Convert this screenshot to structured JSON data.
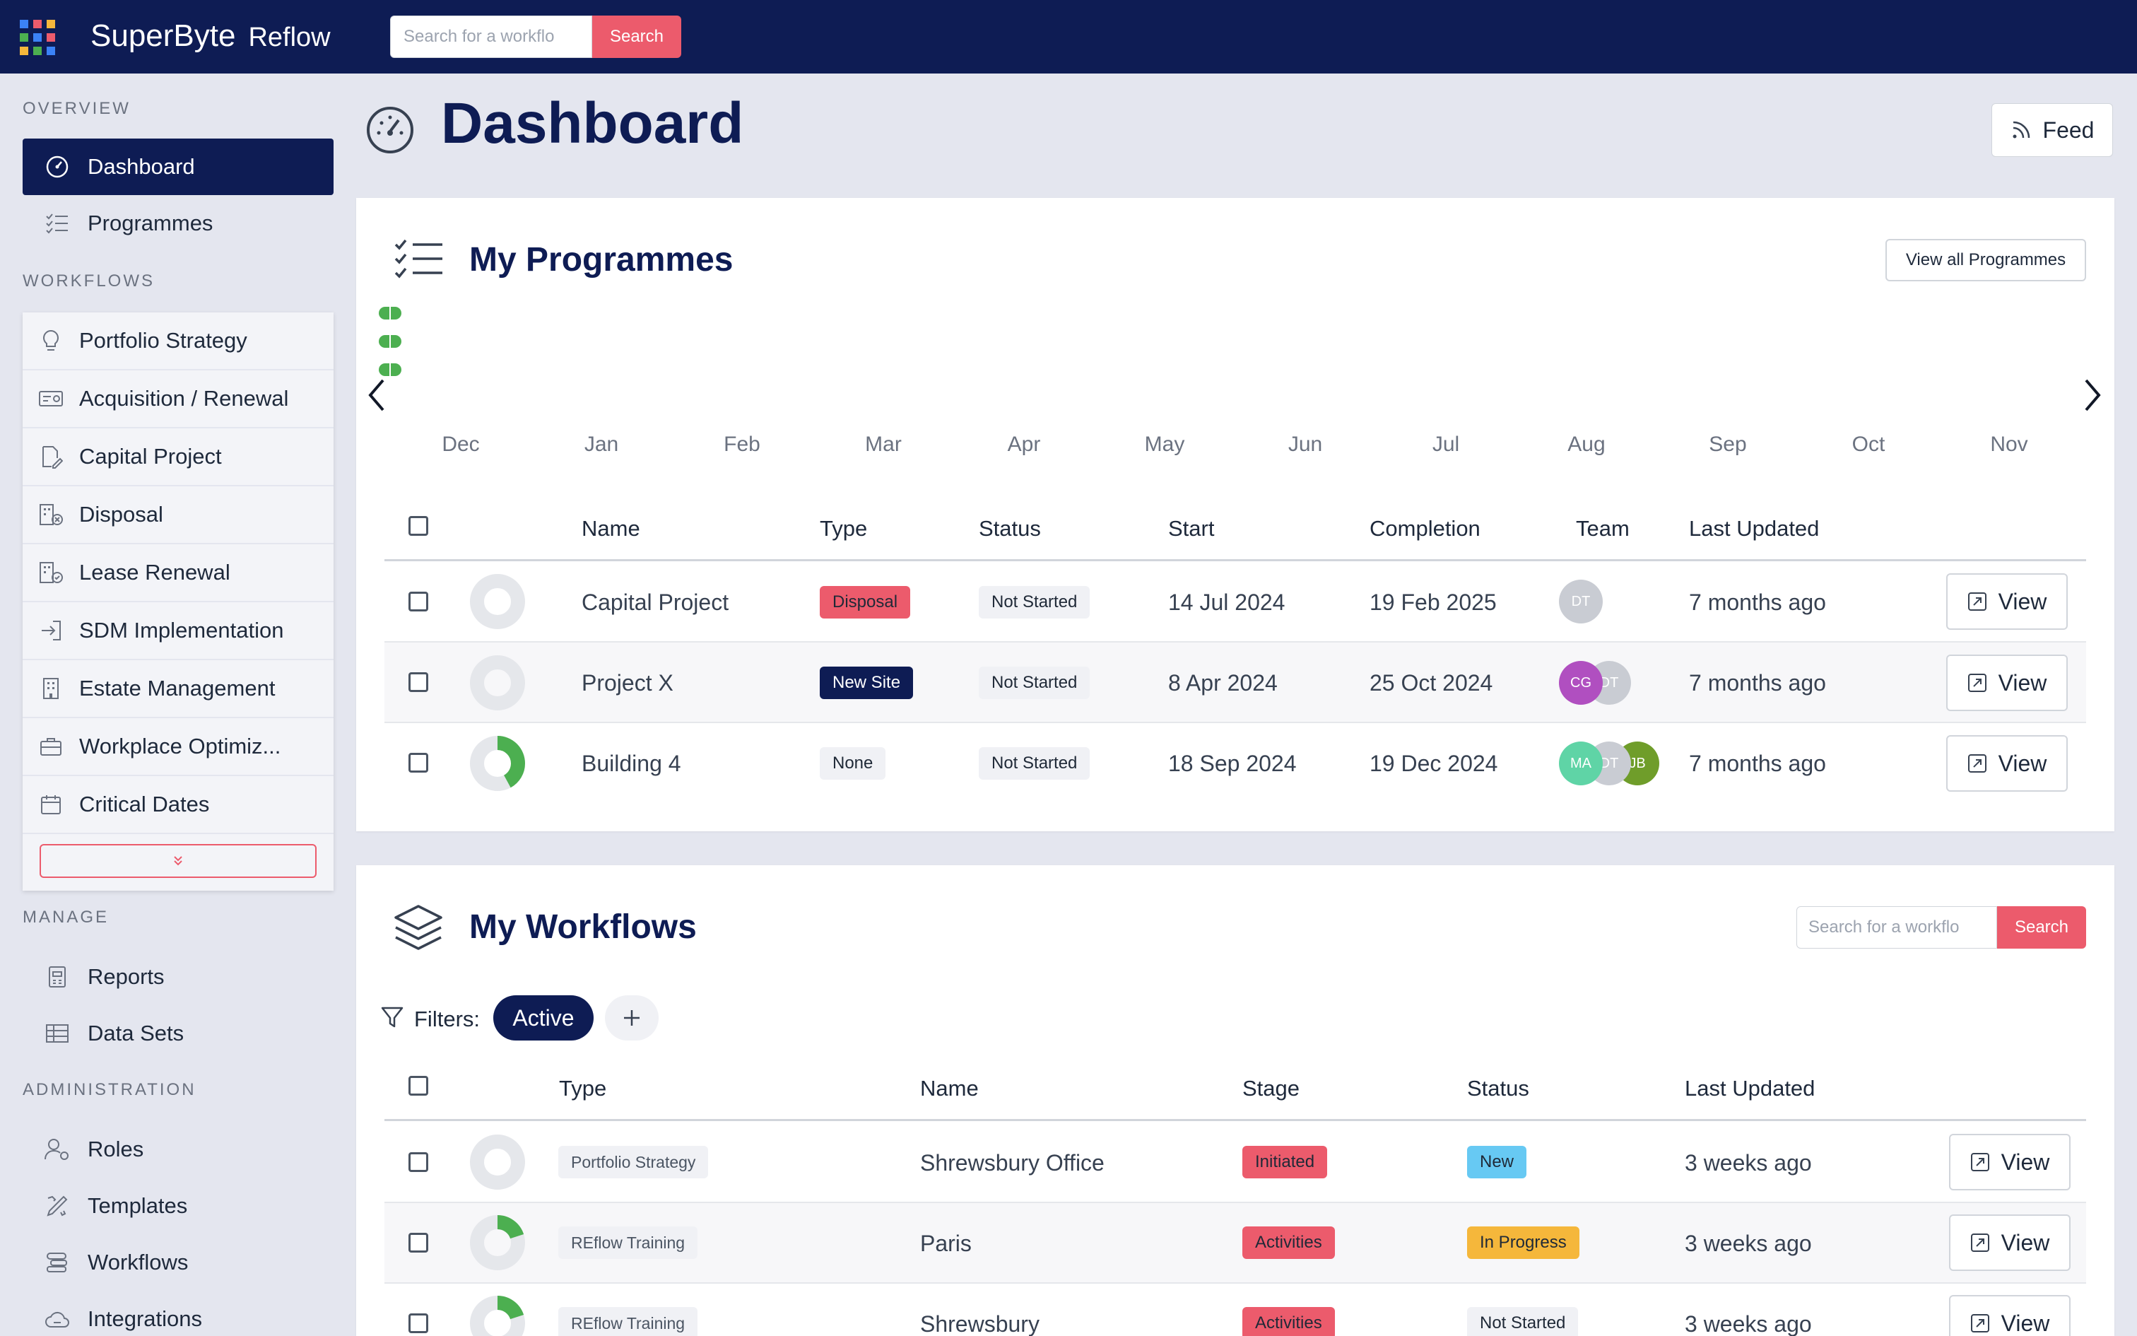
{
  "app": {
    "brand": "SuperByte",
    "product": "Reflow"
  },
  "topbar": {
    "search_placeholder": "Search for a workflo",
    "search_button": "Search"
  },
  "sidebar": {
    "overview_title": "OVERVIEW",
    "overview_items": [
      {
        "label": "Dashboard",
        "icon": "dashboard-icon",
        "active": true
      },
      {
        "label": "Programmes",
        "icon": "list-check-icon"
      }
    ],
    "workflows_title": "WORKFLOWS",
    "workflow_items": [
      {
        "label": "Portfolio Strategy",
        "icon": "lightbulb-icon"
      },
      {
        "label": "Acquisition / Renewal",
        "icon": "money-icon"
      },
      {
        "label": "Capital Project",
        "icon": "edit-doc-icon"
      },
      {
        "label": "Disposal",
        "icon": "building-x-icon"
      },
      {
        "label": "Lease Renewal",
        "icon": "building-check-icon"
      },
      {
        "label": "SDM Implementation",
        "icon": "login-icon"
      },
      {
        "label": "Estate Management",
        "icon": "building-icon"
      },
      {
        "label": "Workplace Optimiz...",
        "icon": "briefcase-icon"
      },
      {
        "label": "Critical Dates",
        "icon": "calendar-icon"
      }
    ],
    "manage_title": "MANAGE",
    "manage_items": [
      {
        "label": "Reports",
        "icon": "report-icon"
      },
      {
        "label": "Data Sets",
        "icon": "table-icon"
      }
    ],
    "admin_title": "ADMINISTRATION",
    "admin_items": [
      {
        "label": "Roles",
        "icon": "user-gear-icon"
      },
      {
        "label": "Templates",
        "icon": "templates-icon"
      },
      {
        "label": "Workflows",
        "icon": "workflow-icon"
      },
      {
        "label": "Integrations",
        "icon": "cloud-icon"
      }
    ]
  },
  "page": {
    "title": "Dashboard",
    "feed_label": "Feed"
  },
  "programmes": {
    "title": "My Programmes",
    "view_all": "View all Programmes",
    "months": [
      "Dec",
      "Jan",
      "Feb",
      "Mar",
      "Apr",
      "May",
      "Jun",
      "Jul",
      "Aug",
      "Sep",
      "Oct",
      "Nov"
    ],
    "columns": [
      "Name",
      "Type",
      "Status",
      "Start",
      "Completion",
      "Team",
      "Last Updated"
    ],
    "rows": [
      {
        "name": "Capital Project",
        "type": "Disposal",
        "type_color": "#ec5b6c",
        "status": "Not Started",
        "start": "14 Jul 2024",
        "completion": "19 Feb 2025",
        "team": [
          {
            "initials": "DT",
            "color": "#c9ccd3"
          }
        ],
        "updated": "7 months ago",
        "progress": 0,
        "view": "View"
      },
      {
        "name": "Project X",
        "type": "New Site",
        "type_color": "#0e1c54",
        "status": "Not Started",
        "start": "8 Apr 2024",
        "completion": "25 Oct 2024",
        "team": [
          {
            "initials": "CG",
            "color": "#b04fc0"
          },
          {
            "initials": "DT",
            "color": "#c9ccd3"
          }
        ],
        "updated": "7 months ago",
        "progress": 0,
        "view": "View"
      },
      {
        "name": "Building 4",
        "type": "None",
        "type_color": "#f0f1f5",
        "status": "Not Started",
        "start": "18 Sep 2024",
        "completion": "19 Dec 2024",
        "team": [
          {
            "initials": "MA",
            "color": "#5fd4a6"
          },
          {
            "initials": "DT",
            "color": "#c9ccd3"
          },
          {
            "initials": "JB",
            "color": "#6f9d2a"
          }
        ],
        "updated": "7 months ago",
        "progress": 0.42,
        "view": "View"
      }
    ]
  },
  "workflows": {
    "title": "My Workflows",
    "search_placeholder": "Search for a workflo",
    "search_button": "Search",
    "filters_label": "Filters:",
    "active_filter": "Active",
    "columns": [
      "Type",
      "Name",
      "Stage",
      "Status",
      "Last Updated"
    ],
    "rows": [
      {
        "type": "Portfolio Strategy",
        "name": "Shrewsbury Office",
        "stage": "Initiated",
        "status": "New",
        "status_color": "#67c9f3",
        "updated": "3 weeks ago",
        "progress": 0,
        "view": "View"
      },
      {
        "type": "REflow Training",
        "name": "Paris",
        "stage": "Activities",
        "status": "In Progress",
        "status_color": "#f5b73b",
        "updated": "3 weeks ago",
        "progress": 0.2,
        "view": "View"
      },
      {
        "type": "REflow Training",
        "name": "Shrewsbury",
        "stage": "Activities",
        "status": "Not Started",
        "status_color": "#f0f1f5",
        "updated": "3 weeks ago",
        "progress": 0.2,
        "view": "View"
      }
    ]
  },
  "colors": {
    "navy": "#0e1c54",
    "accent": "#ec5b6c",
    "green": "#4caf50"
  }
}
